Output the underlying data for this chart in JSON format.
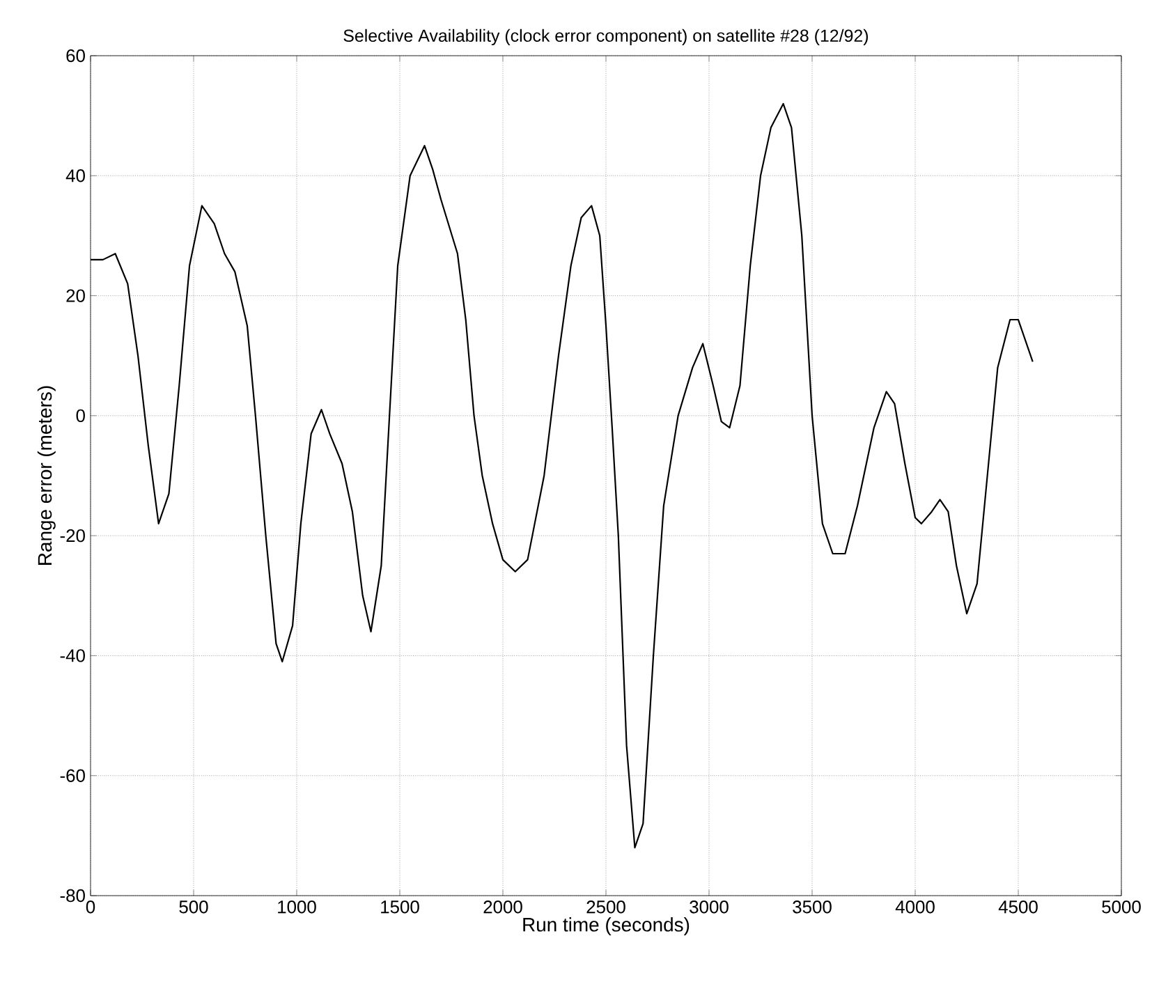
{
  "chart_data": {
    "type": "line",
    "title": "Selective Availability (clock error component) on satellite #28 (12/92)",
    "xlabel": "Run time (seconds)",
    "ylabel": "Range error (meters)",
    "x": [
      0,
      60,
      120,
      180,
      230,
      280,
      330,
      380,
      430,
      480,
      540,
      600,
      650,
      700,
      760,
      800,
      850,
      900,
      930,
      980,
      1020,
      1070,
      1120,
      1160,
      1220,
      1270,
      1320,
      1360,
      1410,
      1450,
      1490,
      1550,
      1620,
      1660,
      1700,
      1780,
      1820,
      1860,
      1900,
      1950,
      2000,
      2060,
      2120,
      2200,
      2270,
      2330,
      2380,
      2430,
      2470,
      2500,
      2530,
      2560,
      2600,
      2640,
      2680,
      2730,
      2780,
      2850,
      2920,
      2970,
      3020,
      3060,
      3100,
      3150,
      3200,
      3250,
      3300,
      3360,
      3400,
      3450,
      3500,
      3550,
      3600,
      3660,
      3720,
      3800,
      3860,
      3900,
      3950,
      4000,
      4030,
      4080,
      4120,
      4160,
      4200,
      4250,
      4300,
      4350,
      4400,
      4460,
      4500,
      4570
    ],
    "series": [
      {
        "color": "#000000",
        "values": [
          26,
          26,
          27,
          22,
          10,
          -5,
          -18,
          -13,
          5,
          25,
          35,
          32,
          27,
          24,
          15,
          0,
          -20,
          -38,
          -41,
          -35,
          -18,
          -3,
          1,
          -3,
          -8,
          -16,
          -30,
          -36,
          -25,
          0,
          25,
          40,
          45,
          41,
          36,
          27,
          16,
          0,
          -10,
          -18,
          -24,
          -26,
          -24,
          -10,
          10,
          25,
          33,
          35,
          30,
          15,
          -2,
          -20,
          -55,
          -72,
          -68,
          -40,
          -15,
          0,
          8,
          12,
          5,
          -1,
          -2,
          5,
          25,
          40,
          48,
          52,
          48,
          30,
          0,
          -18,
          -23,
          -23,
          -15,
          -2,
          4,
          2,
          -8,
          -17,
          -18,
          -16,
          -14,
          -16,
          -25,
          -33,
          -28,
          -10,
          8,
          16,
          16,
          9
        ]
      }
    ],
    "xlim": [
      0,
      5000
    ],
    "ylim": [
      -80,
      60
    ],
    "xticks": [
      0,
      500,
      1000,
      1500,
      2000,
      2500,
      3000,
      3500,
      4000,
      4500,
      5000
    ],
    "yticks": [
      -80,
      -60,
      -40,
      -20,
      0,
      20,
      40,
      60
    ],
    "grid": true,
    "line_style": "solid",
    "marker": "none"
  }
}
